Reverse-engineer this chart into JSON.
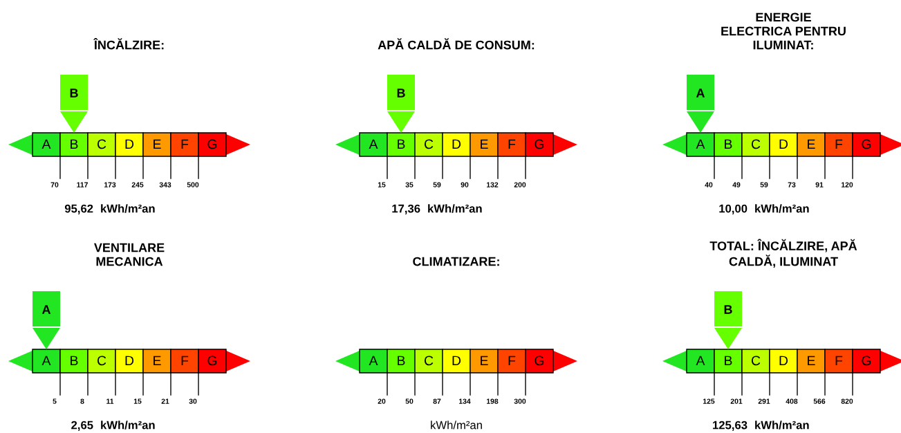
{
  "chart_data": [
    {
      "type": "other",
      "title": "ÎNCĂLZIRE:",
      "categories": [
        "A",
        "B",
        "C",
        "D",
        "E",
        "F",
        "G"
      ],
      "colors": [
        "#22e622",
        "#66ff00",
        "#bbff00",
        "#ffff00",
        "#ff9900",
        "#ff4400",
        "#ff0000"
      ],
      "values": [
        70,
        117,
        173,
        245,
        343,
        500,
        null
      ],
      "data_labels": true,
      "needle": "B",
      "annotations": [
        "95,62",
        "kWh/m²an"
      ]
    },
    {
      "type": "other",
      "title": "APĂ CALDĂ DE CONSUM:",
      "categories": [
        "A",
        "B",
        "C",
        "D",
        "E",
        "F",
        "G"
      ],
      "colors": [
        "#22e622",
        "#66ff00",
        "#bbff00",
        "#ffff00",
        "#ff9900",
        "#ff4400",
        "#ff0000"
      ],
      "values": [
        15,
        35,
        59,
        90,
        132,
        200,
        null
      ],
      "data_labels": true,
      "needle": "B",
      "annotations": [
        "17,36",
        "kWh/m²an"
      ]
    },
    {
      "type": "other",
      "title": "ENERGIE\nELECTRICA PENTRU\nILUMINAT:",
      "categories": [
        "A",
        "B",
        "C",
        "D",
        "E",
        "F",
        "G"
      ],
      "colors": [
        "#22e622",
        "#66ff00",
        "#bbff00",
        "#ffff00",
        "#ff9900",
        "#ff4400",
        "#ff0000"
      ],
      "values": [
        40,
        49,
        59,
        73,
        91,
        120,
        null
      ],
      "data_labels": true,
      "needle": "A",
      "annotations": [
        "10,00",
        "kWh/m²an"
      ]
    },
    {
      "type": "other",
      "title": "VENTILARE\nMECANICA",
      "categories": [
        "A",
        "B",
        "C",
        "D",
        "E",
        "F",
        "G"
      ],
      "colors": [
        "#22e622",
        "#66ff00",
        "#bbff00",
        "#ffff00",
        "#ff9900",
        "#ff4400",
        "#ff0000"
      ],
      "values": [
        5,
        8,
        11,
        15,
        21,
        30,
        null
      ],
      "data_labels": true,
      "needle": "A",
      "annotations": [
        "2,65",
        "kWh/m²an"
      ]
    },
    {
      "type": "other",
      "title": "CLIMATIZARE:",
      "categories": [
        "A",
        "B",
        "C",
        "D",
        "E",
        "F",
        "G"
      ],
      "colors": [
        "#22e622",
        "#66ff00",
        "#bbff00",
        "#ffff00",
        "#ff9900",
        "#ff4400",
        "#ff0000"
      ],
      "values": [
        20,
        50,
        87,
        134,
        198,
        300,
        null
      ],
      "data_labels": true,
      "annotations": [
        "kWh/m²an"
      ]
    },
    {
      "type": "other",
      "title": "TOTAL: ÎNCĂLZIRE, APĂ\nCALDĂ, ILUMINAT",
      "categories": [
        "A",
        "B",
        "C",
        "D",
        "E",
        "F",
        "G"
      ],
      "colors": [
        "#22e622",
        "#66ff00",
        "#bbff00",
        "#ffff00",
        "#ff9900",
        "#ff4400",
        "#ff0000"
      ],
      "values": [
        125,
        201,
        291,
        408,
        566,
        820,
        null
      ],
      "data_labels": true,
      "needle": "B",
      "annotations": [
        "125,63",
        "kWh/m²an"
      ]
    }
  ]
}
